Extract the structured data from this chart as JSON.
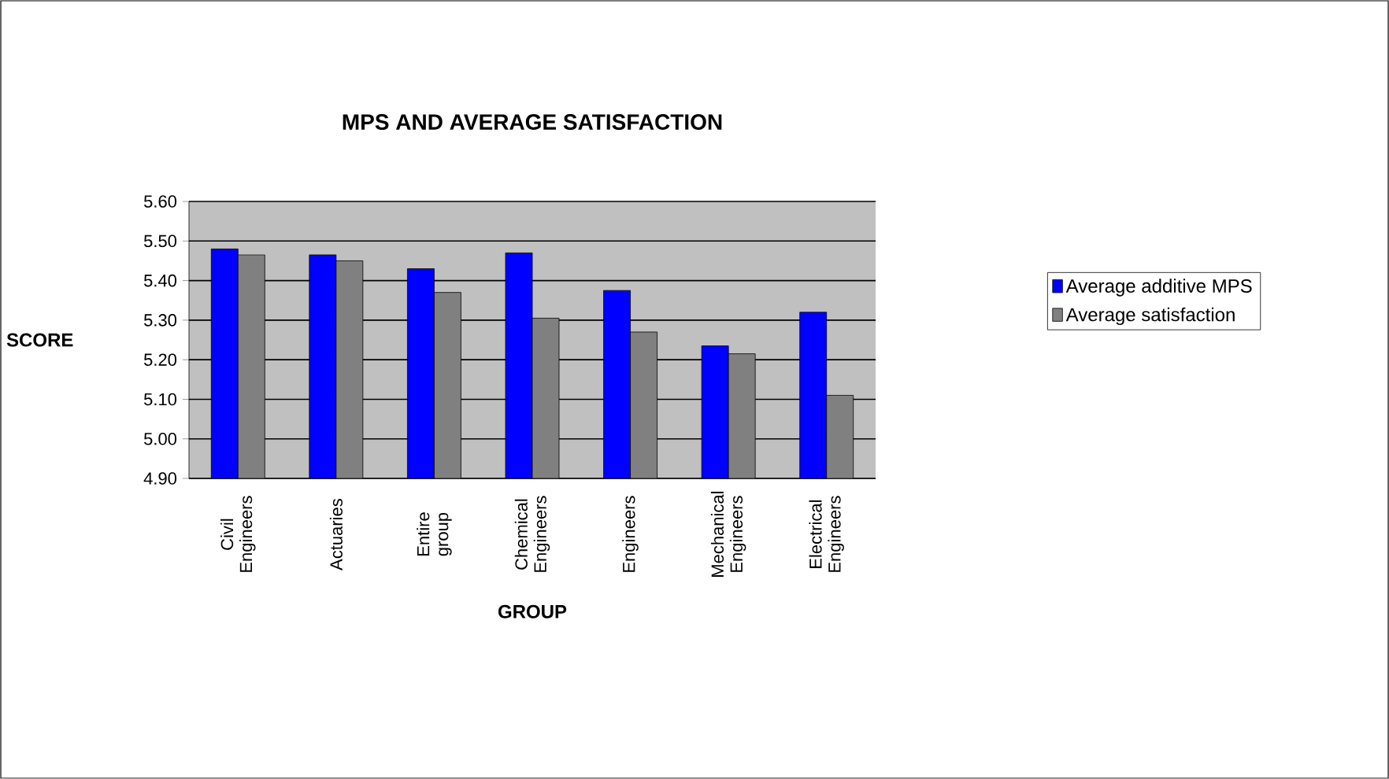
{
  "chart_data": {
    "type": "bar",
    "title": "MPS AND AVERAGE SATISFACTION",
    "xlabel": "GROUP",
    "ylabel": "SCORE",
    "categories": [
      "Civil Engineers",
      "Actuaries",
      "Entire group",
      "Chemical Engineers",
      "Engineers",
      "Mechanical Engineers",
      "Electrical Engineers"
    ],
    "series": [
      {
        "name": "Average additive MPS",
        "color": "#0000ff",
        "values": [
          5.48,
          5.465,
          5.43,
          5.47,
          5.375,
          5.235,
          5.32
        ]
      },
      {
        "name": "Average satisfaction",
        "color": "#808080",
        "values": [
          5.465,
          5.45,
          5.37,
          5.305,
          5.27,
          5.215,
          5.11
        ]
      }
    ],
    "ylim": [
      4.9,
      5.6
    ],
    "yticks": [
      {
        "value": 4.9,
        "label": "4.90"
      },
      {
        "value": 5.0,
        "label": "5.00"
      },
      {
        "value": 5.1,
        "label": "5.10"
      },
      {
        "value": 5.2,
        "label": "5.20"
      },
      {
        "value": 5.3,
        "label": "5.30"
      },
      {
        "value": 5.4,
        "label": "5.40"
      },
      {
        "value": 5.5,
        "label": "5.50"
      },
      {
        "value": 5.6,
        "label": "5.60"
      }
    ],
    "grid": "y",
    "legend": "right"
  }
}
